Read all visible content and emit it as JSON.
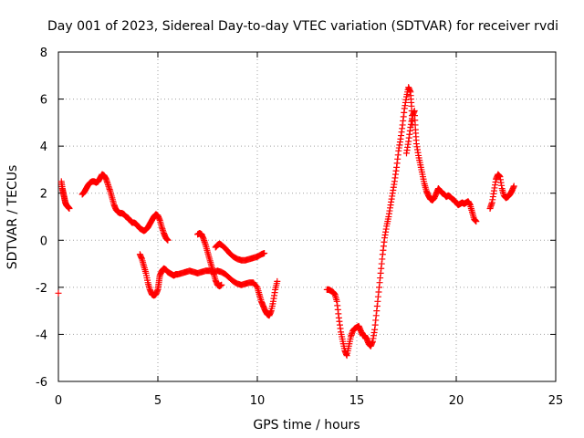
{
  "chart_data": {
    "type": "scatter",
    "title": "Day 001 of 2023, Sidereal Day-to-day VTEC variation (SDTVAR) for receiver rvdi",
    "xlabel": "GPS time / hours",
    "ylabel": "SDTVAR / TECUs",
    "xlim": [
      0,
      25
    ],
    "ylim": [
      -6,
      8
    ],
    "xticks": [
      0,
      5,
      10,
      15,
      20,
      25
    ],
    "yticks": [
      -6,
      -4,
      -2,
      0,
      2,
      4,
      6,
      8
    ],
    "grid": true,
    "marker": "plus",
    "color": "#ff0000",
    "series": [
      {
        "values": [
          [
            0.0,
            -2.25
          ],
          [
            0.15,
            2.5
          ],
          [
            0.2,
            2.2
          ],
          [
            0.25,
            2.0
          ],
          [
            0.3,
            1.8
          ],
          [
            0.35,
            1.6
          ],
          [
            0.4,
            1.5
          ],
          [
            0.45,
            1.45
          ],
          [
            0.5,
            1.4
          ],
          [
            0.55,
            1.35
          ],
          [
            1.2,
            1.95
          ],
          [
            1.3,
            2.05
          ],
          [
            1.4,
            2.2
          ],
          [
            1.5,
            2.35
          ],
          [
            1.6,
            2.45
          ],
          [
            1.7,
            2.5
          ],
          [
            1.8,
            2.5
          ],
          [
            1.9,
            2.45
          ],
          [
            2.0,
            2.5
          ],
          [
            2.1,
            2.65
          ],
          [
            2.2,
            2.8
          ],
          [
            2.3,
            2.75
          ],
          [
            2.4,
            2.6
          ],
          [
            2.5,
            2.35
          ],
          [
            2.6,
            2.1
          ],
          [
            2.7,
            1.8
          ],
          [
            2.8,
            1.5
          ],
          [
            2.9,
            1.3
          ],
          [
            3.0,
            1.2
          ],
          [
            3.1,
            1.15
          ],
          [
            3.2,
            1.15
          ],
          [
            3.3,
            1.1
          ],
          [
            3.4,
            1.0
          ],
          [
            3.5,
            0.95
          ],
          [
            3.6,
            0.85
          ],
          [
            3.7,
            0.75
          ],
          [
            3.8,
            0.75
          ],
          [
            3.9,
            0.7
          ],
          [
            4.0,
            0.6
          ],
          [
            4.1,
            0.5
          ],
          [
            4.2,
            0.45
          ],
          [
            4.3,
            0.4
          ],
          [
            4.4,
            0.45
          ],
          [
            4.5,
            0.55
          ],
          [
            4.6,
            0.7
          ],
          [
            4.7,
            0.85
          ],
          [
            4.8,
            1.0
          ],
          [
            4.9,
            1.1
          ],
          [
            5.0,
            1.05
          ],
          [
            5.1,
            0.85
          ],
          [
            5.2,
            0.55
          ],
          [
            5.3,
            0.3
          ],
          [
            5.4,
            0.1
          ],
          [
            5.5,
            0.0
          ],
          [
            4.1,
            -0.6
          ],
          [
            4.2,
            -0.8
          ],
          [
            4.3,
            -1.1
          ],
          [
            4.4,
            -1.4
          ],
          [
            4.5,
            -1.8
          ],
          [
            4.6,
            -2.1
          ],
          [
            4.7,
            -2.3
          ],
          [
            4.8,
            -2.35
          ],
          [
            4.9,
            -2.3
          ],
          [
            5.0,
            -2.1
          ],
          [
            5.05,
            -1.8
          ],
          [
            5.1,
            -1.5
          ],
          [
            5.2,
            -1.3
          ],
          [
            5.3,
            -1.2
          ],
          [
            5.4,
            -1.25
          ],
          [
            5.5,
            -1.35
          ],
          [
            5.6,
            -1.4
          ],
          [
            5.7,
            -1.45
          ],
          [
            5.8,
            -1.5
          ],
          [
            5.9,
            -1.45
          ],
          [
            6.0,
            -1.45
          ],
          [
            6.2,
            -1.4
          ],
          [
            6.4,
            -1.35
          ],
          [
            6.6,
            -1.3
          ],
          [
            6.8,
            -1.35
          ],
          [
            7.0,
            -1.4
          ],
          [
            7.2,
            -1.35
          ],
          [
            7.4,
            -1.3
          ],
          [
            7.6,
            -1.3
          ],
          [
            7.8,
            -1.35
          ],
          [
            8.0,
            -1.3
          ],
          [
            8.2,
            -1.35
          ],
          [
            8.4,
            -1.45
          ],
          [
            8.6,
            -1.6
          ],
          [
            8.8,
            -1.75
          ],
          [
            9.0,
            -1.85
          ],
          [
            9.2,
            -1.9
          ],
          [
            9.4,
            -1.85
          ],
          [
            9.6,
            -1.8
          ],
          [
            9.8,
            -1.8
          ],
          [
            10.0,
            -2.0
          ],
          [
            10.1,
            -2.3
          ],
          [
            10.2,
            -2.6
          ],
          [
            10.3,
            -2.8
          ],
          [
            10.4,
            -3.0
          ],
          [
            10.5,
            -3.15
          ],
          [
            10.6,
            -3.2
          ],
          [
            10.7,
            -3.0
          ],
          [
            10.8,
            -2.6
          ],
          [
            10.9,
            -2.1
          ],
          [
            11.0,
            -1.75
          ],
          [
            7.0,
            0.25
          ],
          [
            7.1,
            0.3
          ],
          [
            7.2,
            0.25
          ],
          [
            7.3,
            0.05
          ],
          [
            7.4,
            -0.2
          ],
          [
            7.5,
            -0.5
          ],
          [
            7.6,
            -0.8
          ],
          [
            7.7,
            -1.1
          ],
          [
            7.8,
            -1.4
          ],
          [
            7.9,
            -1.7
          ],
          [
            8.0,
            -1.9
          ],
          [
            8.1,
            -1.95
          ],
          [
            8.2,
            -1.9
          ],
          [
            7.9,
            -0.3
          ],
          [
            8.0,
            -0.2
          ],
          [
            8.1,
            -0.15
          ],
          [
            8.2,
            -0.2
          ],
          [
            8.4,
            -0.35
          ],
          [
            8.6,
            -0.55
          ],
          [
            8.8,
            -0.7
          ],
          [
            9.0,
            -0.8
          ],
          [
            9.2,
            -0.85
          ],
          [
            9.4,
            -0.85
          ],
          [
            9.6,
            -0.8
          ],
          [
            9.8,
            -0.75
          ],
          [
            10.0,
            -0.7
          ],
          [
            10.2,
            -0.6
          ],
          [
            10.35,
            -0.55
          ],
          [
            13.5,
            -2.1
          ],
          [
            13.6,
            -2.1
          ],
          [
            13.7,
            -2.15
          ],
          [
            13.8,
            -2.2
          ],
          [
            13.9,
            -2.3
          ],
          [
            14.0,
            -2.6
          ],
          [
            14.1,
            -3.3
          ],
          [
            14.2,
            -3.9
          ],
          [
            14.3,
            -4.3
          ],
          [
            14.4,
            -4.7
          ],
          [
            14.5,
            -4.9
          ],
          [
            14.6,
            -4.5
          ],
          [
            14.7,
            -4.1
          ],
          [
            14.8,
            -3.85
          ],
          [
            14.9,
            -3.75
          ],
          [
            15.0,
            -3.7
          ],
          [
            15.1,
            -3.65
          ],
          [
            15.2,
            -3.85
          ],
          [
            15.3,
            -4.05
          ],
          [
            15.4,
            -4.05
          ],
          [
            15.5,
            -4.2
          ],
          [
            15.6,
            -4.4
          ],
          [
            15.7,
            -4.5
          ],
          [
            15.8,
            -4.3
          ],
          [
            15.9,
            -3.8
          ],
          [
            16.0,
            -3.0
          ],
          [
            16.1,
            -2.2
          ],
          [
            16.2,
            -1.4
          ],
          [
            16.3,
            -0.6
          ],
          [
            16.4,
            0.1
          ],
          [
            16.5,
            0.6
          ],
          [
            16.6,
            1.0
          ],
          [
            16.7,
            1.5
          ],
          [
            16.8,
            2.0
          ],
          [
            16.9,
            2.5
          ],
          [
            17.0,
            3.1
          ],
          [
            17.1,
            3.8
          ],
          [
            17.2,
            4.3
          ],
          [
            17.3,
            4.9
          ],
          [
            17.4,
            5.6
          ],
          [
            17.5,
            6.1
          ],
          [
            17.6,
            6.5
          ],
          [
            17.7,
            6.3
          ],
          [
            17.75,
            5.7
          ],
          [
            17.8,
            4.9
          ],
          [
            17.5,
            3.7
          ],
          [
            17.6,
            4.2
          ],
          [
            17.7,
            4.8
          ],
          [
            17.8,
            5.3
          ],
          [
            17.9,
            5.5
          ],
          [
            17.95,
            4.7
          ],
          [
            18.0,
            4.1
          ],
          [
            18.1,
            3.6
          ],
          [
            18.2,
            3.2
          ],
          [
            18.3,
            2.8
          ],
          [
            18.4,
            2.4
          ],
          [
            18.5,
            2.1
          ],
          [
            18.6,
            1.9
          ],
          [
            18.7,
            1.75
          ],
          [
            18.8,
            1.7
          ],
          [
            18.9,
            1.8
          ],
          [
            19.0,
            2.0
          ],
          [
            19.1,
            2.2
          ],
          [
            19.2,
            2.1
          ],
          [
            19.3,
            2.0
          ],
          [
            19.4,
            1.95
          ],
          [
            19.5,
            1.85
          ],
          [
            19.6,
            1.9
          ],
          [
            19.7,
            1.85
          ],
          [
            19.8,
            1.75
          ],
          [
            19.9,
            1.7
          ],
          [
            20.0,
            1.6
          ],
          [
            20.1,
            1.5
          ],
          [
            20.2,
            1.55
          ],
          [
            20.3,
            1.6
          ],
          [
            20.4,
            1.55
          ],
          [
            20.5,
            1.6
          ],
          [
            20.6,
            1.65
          ],
          [
            20.7,
            1.5
          ],
          [
            20.8,
            1.2
          ],
          [
            20.9,
            0.9
          ],
          [
            21.0,
            0.8
          ],
          [
            21.7,
            1.35
          ],
          [
            21.8,
            1.6
          ],
          [
            21.9,
            2.1
          ],
          [
            22.0,
            2.6
          ],
          [
            22.1,
            2.8
          ],
          [
            22.2,
            2.7
          ],
          [
            22.3,
            2.2
          ],
          [
            22.4,
            1.9
          ],
          [
            22.5,
            1.8
          ],
          [
            22.6,
            1.85
          ],
          [
            22.7,
            1.95
          ],
          [
            22.8,
            2.1
          ],
          [
            22.9,
            2.3
          ]
        ]
      }
    ]
  }
}
